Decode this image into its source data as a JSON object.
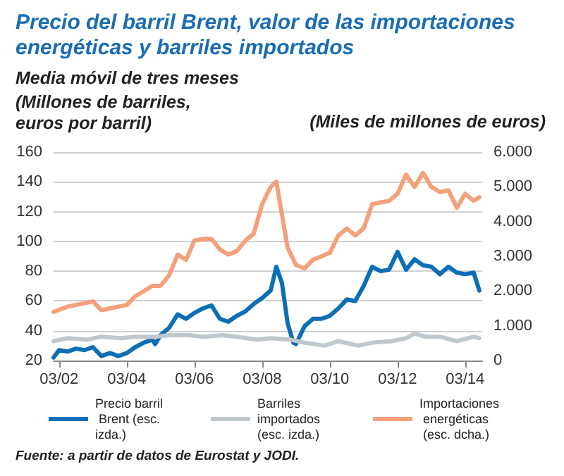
{
  "chart_data": {
    "type": "line",
    "title": "Precio del barril Brent, valor de las importaciones energéticas y barriles importados",
    "subtitle": "Media móvil de tres meses",
    "ylabel": "(Millones de barriles, euros por barril)",
    "y2label": "(Miles de millones de euros)",
    "annotations": [
      "Fuente: a partir de datos de Eurostat y JODI."
    ],
    "xlim": [
      "2002-01",
      "2014-09"
    ],
    "xticks": [
      {
        "value": "2002-03",
        "label": "03/02"
      },
      {
        "value": "2004-03",
        "label": "03/04"
      },
      {
        "value": "2006-03",
        "label": "03/06"
      },
      {
        "value": "2008-03",
        "label": "03/08"
      },
      {
        "value": "2010-03",
        "label": "03/10"
      },
      {
        "value": "2012-03",
        "label": "03/12"
      },
      {
        "value": "2014-03",
        "label": "03/14"
      }
    ],
    "ylim": [
      20,
      160
    ],
    "yticks": [
      20,
      40,
      60,
      80,
      100,
      120,
      140,
      160
    ],
    "y2lim": [
      0,
      6000
    ],
    "y2ticks": [
      {
        "value": 0,
        "label": "0"
      },
      {
        "value": 1000,
        "label": "1.000"
      },
      {
        "value": 2000,
        "label": "2.000"
      },
      {
        "value": 3000,
        "label": "3.000"
      },
      {
        "value": 4000,
        "label": "4.000"
      },
      {
        "value": 5000,
        "label": "5.000"
      },
      {
        "value": 6000,
        "label": "6.000"
      }
    ],
    "grid": "y",
    "legend": "bottom",
    "marker": "none",
    "line_style": "solid",
    "series": [
      {
        "name": "Precio barril Brent (esc. izda.)",
        "color": "#0c6fb5",
        "x": [
          "2002-01",
          "2002-03",
          "2002-06",
          "2002-09",
          "2002-12",
          "2003-03",
          "2003-06",
          "2003-09",
          "2003-12",
          "2004-03",
          "2004-06",
          "2004-09",
          "2004-12",
          "2005-01",
          "2005-03",
          "2005-06",
          "2005-09",
          "2005-12",
          "2006-03",
          "2006-06",
          "2006-09",
          "2006-12",
          "2007-03",
          "2007-06",
          "2007-09",
          "2007-12",
          "2008-03",
          "2008-06",
          "2008-08",
          "2008-10",
          "2008-12",
          "2009-02",
          "2009-03",
          "2009-06",
          "2009-09",
          "2009-12",
          "2010-03",
          "2010-06",
          "2010-09",
          "2010-12",
          "2011-03",
          "2011-06",
          "2011-09",
          "2011-12",
          "2012-03",
          "2012-06",
          "2012-09",
          "2012-12",
          "2013-03",
          "2013-06",
          "2013-09",
          "2013-12",
          "2014-03",
          "2014-06",
          "2014-08"
        ],
        "values": [
          22,
          27,
          26,
          28,
          27,
          29,
          23,
          25,
          23,
          25,
          29,
          32,
          34,
          31,
          37,
          42,
          51,
          48,
          52,
          55,
          57,
          48,
          46,
          50,
          53,
          58,
          62,
          67,
          83,
          72,
          45,
          32,
          31,
          43,
          48,
          48,
          50,
          55,
          61,
          60,
          70,
          83,
          80,
          81,
          93,
          81,
          88,
          84,
          83,
          78,
          83,
          79,
          78,
          79,
          67
        ]
      },
      {
        "name": "Barriles importados (esc. izda.)",
        "color": "#bfc8cc",
        "x": [
          "2002-01",
          "2002-06",
          "2003-01",
          "2003-06",
          "2004-01",
          "2004-06",
          "2005-01",
          "2005-06",
          "2006-01",
          "2006-06",
          "2007-01",
          "2007-06",
          "2008-01",
          "2008-06",
          "2009-01",
          "2009-06",
          "2010-01",
          "2010-06",
          "2011-01",
          "2011-06",
          "2012-01",
          "2012-06",
          "2012-09",
          "2013-01",
          "2013-06",
          "2013-12",
          "2014-06",
          "2014-08"
        ],
        "values": [
          33,
          35,
          34,
          36,
          35,
          36,
          36,
          37,
          37,
          36,
          37,
          36,
          34,
          35,
          34,
          32,
          30,
          33,
          30,
          32,
          33,
          35,
          38,
          36,
          36,
          33,
          36,
          35
        ]
      },
      {
        "name": "Importaciones energéticas (esc. dcha.)",
        "color": "#f4a07a",
        "axis": "y2",
        "x": [
          "2002-01",
          "2002-06",
          "2002-12",
          "2003-03",
          "2003-06",
          "2003-12",
          "2004-03",
          "2004-06",
          "2004-12",
          "2005-03",
          "2005-06",
          "2005-09",
          "2005-12",
          "2006-03",
          "2006-06",
          "2006-09",
          "2006-12",
          "2007-03",
          "2007-06",
          "2007-09",
          "2007-12",
          "2008-03",
          "2008-06",
          "2008-08",
          "2008-12",
          "2009-03",
          "2009-06",
          "2009-09",
          "2009-12",
          "2010-03",
          "2010-06",
          "2010-09",
          "2010-12",
          "2011-03",
          "2011-06",
          "2011-09",
          "2011-12",
          "2012-03",
          "2012-06",
          "2012-09",
          "2012-12",
          "2013-03",
          "2013-06",
          "2013-09",
          "2013-12",
          "2014-03",
          "2014-06",
          "2014-08"
        ],
        "values": [
          1400,
          1550,
          1650,
          1700,
          1450,
          1550,
          1600,
          1850,
          2150,
          2150,
          2450,
          3050,
          2900,
          3450,
          3500,
          3500,
          3200,
          3050,
          3150,
          3450,
          3650,
          4500,
          5000,
          5150,
          3250,
          2750,
          2650,
          2900,
          3000,
          3100,
          3600,
          3800,
          3600,
          3800,
          4500,
          4550,
          4600,
          4800,
          5350,
          5000,
          5400,
          5000,
          4850,
          4900,
          4400,
          4800,
          4600,
          4700
        ]
      }
    ]
  }
}
